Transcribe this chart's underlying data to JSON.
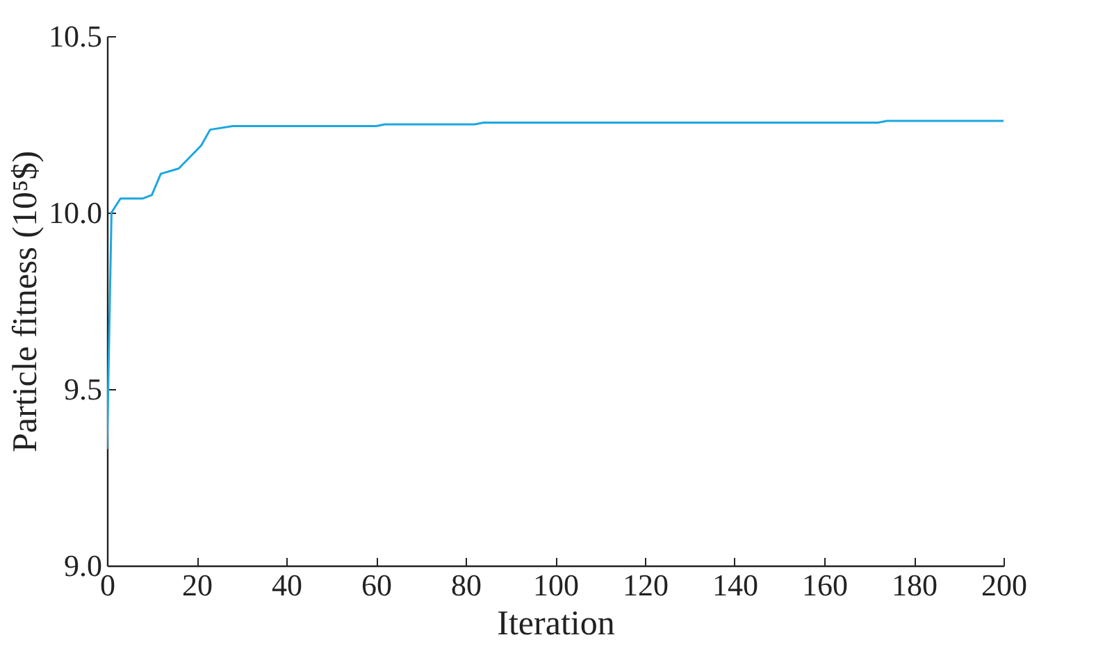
{
  "chart_data": {
    "type": "line",
    "xlabel": "Iteration",
    "ylabel": "Particle fitness (10⁵$)",
    "x": [
      0,
      1,
      3,
      8,
      10,
      12,
      16,
      21,
      23,
      28,
      60,
      62,
      82,
      84,
      172,
      174,
      200
    ],
    "series": [
      {
        "color": "#1aa7e0",
        "values": [
          9.33,
          10.0,
          10.04,
          10.04,
          10.05,
          10.11,
          10.125,
          10.19,
          10.235,
          10.245,
          10.245,
          10.25,
          10.25,
          10.255,
          10.255,
          10.26,
          10.26
        ]
      }
    ],
    "xlim": [
      0,
      200
    ],
    "xticks": [
      0,
      20,
      40,
      60,
      80,
      100,
      120,
      140,
      160,
      180,
      200
    ],
    "ylim": [
      9.0,
      10.5
    ],
    "yticks": [
      {
        "value": 9.0,
        "label": "9.0"
      },
      {
        "value": 9.5,
        "label": "9.5"
      },
      {
        "value": 10.0,
        "label": "10.0"
      },
      {
        "value": 10.5,
        "label": "10.5"
      }
    ],
    "grid": false
  }
}
